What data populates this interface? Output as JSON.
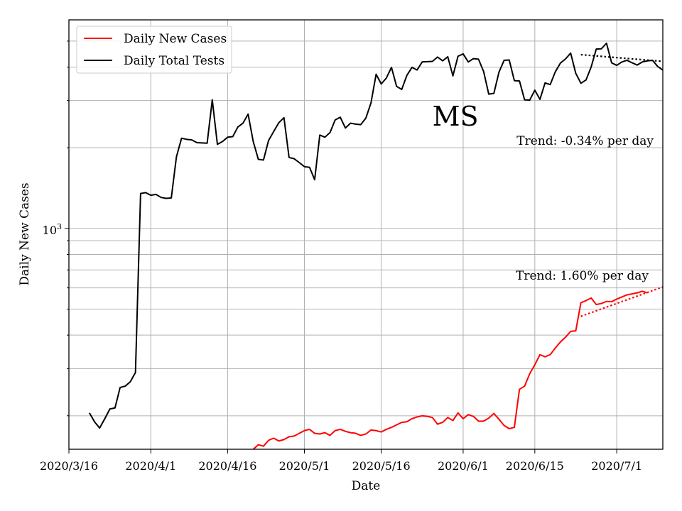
{
  "chart_data": {
    "type": "line",
    "y_scale": "log",
    "state_label": "MS",
    "xlabel": "Date",
    "ylabel": "Daily New Cases",
    "x_tick_labels": [
      "2020/3/16",
      "2020/4/1",
      "2020/4/16",
      "2020/5/1",
      "2020/5/16",
      "2020/6/1",
      "2020/6/15",
      "2020/7/1"
    ],
    "x_tick_days": [
      0,
      16,
      31,
      46,
      61,
      77,
      91,
      107
    ],
    "x_range_days": [
      0,
      116
    ],
    "ylim": [
      150,
      6000
    ],
    "y_tick_label": "10",
    "y_tick_label_exponent": "3",
    "y_tick_value": 1000,
    "y_minor_ticks": [
      200,
      300,
      400,
      500,
      600,
      700,
      800,
      900,
      2000,
      3000,
      4000,
      5000
    ],
    "grid": true,
    "legend_position": "top-left",
    "series": [
      {
        "name": "Daily Total Tests",
        "color": "#000000",
        "start_day": 4,
        "values": [
          205,
          190,
          180,
          195,
          212,
          214,
          255,
          258,
          268,
          290,
          1350,
          1360,
          1330,
          1340,
          1305,
          1295,
          1300,
          1850,
          2170,
          2150,
          2140,
          2090,
          2085,
          2080,
          3020,
          2060,
          2110,
          2190,
          2200,
          2390,
          2470,
          2670,
          2110,
          1810,
          1800,
          2130,
          2300,
          2480,
          2590,
          1840,
          1820,
          1760,
          1700,
          1690,
          1520,
          2230,
          2190,
          2280,
          2540,
          2600,
          2370,
          2470,
          2450,
          2440,
          2580,
          2940,
          3760,
          3460,
          3640,
          3990,
          3390,
          3300,
          3720,
          3990,
          3900,
          4180,
          4190,
          4200,
          4360,
          4220,
          4370,
          3710,
          4390,
          4480,
          4180,
          4300,
          4280,
          3850,
          3170,
          3190,
          3830,
          4240,
          4250,
          3560,
          3550,
          3020,
          3010,
          3280,
          3030,
          3490,
          3440,
          3840,
          4140,
          4290,
          4510,
          3790,
          3480,
          3580,
          4000,
          4670,
          4680,
          4910,
          4150,
          4060,
          4180,
          4240,
          4150,
          4070,
          4180,
          4220,
          4240,
          4020,
          3900
        ]
      },
      {
        "name": "Daily New Cases",
        "color": "#ff0000",
        "start_day": 36,
        "values": [
          150,
          156,
          154,
          162,
          165,
          161,
          163,
          167,
          168,
          172,
          176,
          178,
          172,
          171,
          173,
          169,
          176,
          178,
          175,
          173,
          172,
          169,
          171,
          177,
          176,
          174,
          178,
          181,
          185,
          189,
          190,
          195,
          198,
          200,
          199,
          197,
          186,
          189,
          197,
          192,
          205,
          195,
          202,
          199,
          191,
          191,
          196,
          204,
          194,
          184,
          179,
          181,
          251,
          258,
          287,
          310,
          338,
          332,
          338,
          358,
          377,
          393,
          413,
          415,
          528,
          538,
          550,
          520,
          525,
          534,
          533,
          545,
          555,
          565,
          570,
          575,
          583,
          575
        ]
      }
    ],
    "trends": [
      {
        "label": "Trend: -0.34% per day",
        "color": "#000000",
        "from_day": 100,
        "from_value": 4450,
        "to_day": 116,
        "to_value": 4200
      },
      {
        "label": "Trend: 1.60% per day",
        "color": "#ff0000",
        "from_day": 100,
        "from_value": 470,
        "to_day": 116,
        "to_value": 605
      }
    ]
  }
}
